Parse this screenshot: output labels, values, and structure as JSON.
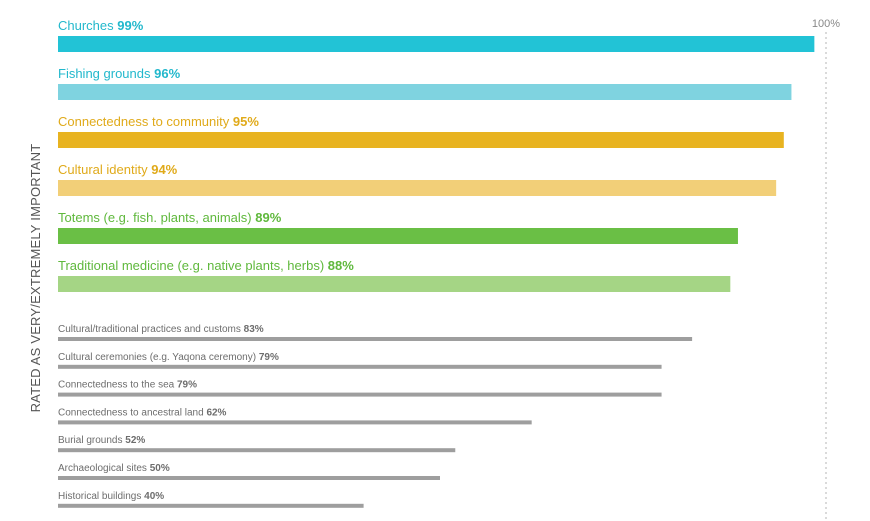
{
  "chart_data": {
    "type": "bar",
    "orientation": "horizontal",
    "ylabel": "RATED  AS VERY/EXTREMELY IMPORTANT",
    "reference_label": "100%",
    "reference_value": 100,
    "xlim": [
      0,
      100
    ],
    "categories": [
      "Churches",
      "Fishing grounds",
      "Connectedness to community",
      "Cultural identity",
      "Totems (e.g. fish. plants, animals)",
      "Traditional medicine (e.g. native plants, herbs)",
      "Cultural/traditional practices and customs",
      "Cultural ceremonies (e.g. Yaqona ceremony)",
      "Connectedness to the sea",
      "Connectedness to ancestral land",
      "Burial grounds",
      "Archaeological sites",
      "Historical buildings"
    ],
    "values": [
      99,
      96,
      95,
      94,
      89,
      88,
      83,
      79,
      79,
      62,
      52,
      50,
      40
    ],
    "value_labels": [
      "99%",
      "96%",
      "95%",
      "94%",
      "89%",
      "88%",
      "83%",
      "79%",
      "79%",
      "62%",
      "52%",
      "50%",
      "40%"
    ],
    "colors": [
      "#22c3d6",
      "#7fd3e0",
      "#e8b320",
      "#f2cf78",
      "#6abf45",
      "#a5d585",
      "#9e9e9e",
      "#9e9e9e",
      "#9e9e9e",
      "#9e9e9e",
      "#9e9e9e",
      "#9e9e9e",
      "#9e9e9e"
    ],
    "label_colors": [
      "#22b8cc",
      "#22b8cc",
      "#e0aa1a",
      "#e0aa1a",
      "#5fb83c",
      "#5fb83c",
      "#6d6d6d",
      "#6d6d6d",
      "#6d6d6d",
      "#6d6d6d",
      "#6d6d6d",
      "#6d6d6d",
      "#6d6d6d"
    ]
  }
}
